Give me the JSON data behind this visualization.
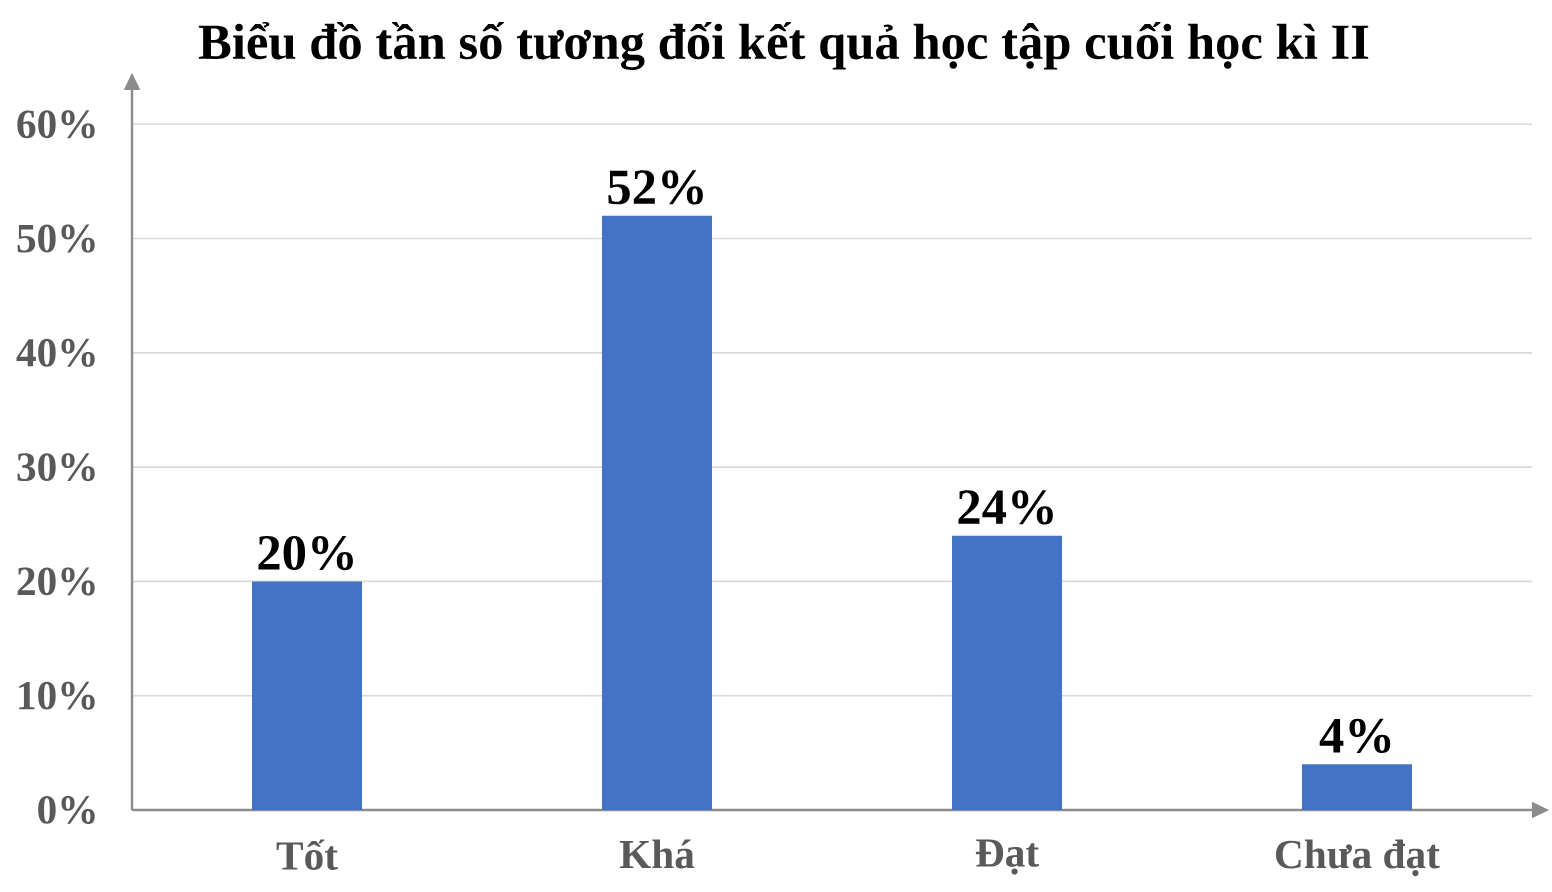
{
  "chart_data": {
    "type": "bar",
    "title": "Biểu đồ tần số tương đối kết quả học tập cuối học kì II",
    "categories": [
      "Tốt",
      "Khá",
      "Đạt",
      "Chưa đạt"
    ],
    "values": [
      20,
      52,
      24,
      4
    ],
    "value_labels": [
      "20%",
      "52%",
      "24%",
      "4%"
    ],
    "color": "#4472c4",
    "ylim": [
      0,
      63
    ],
    "yticks": [
      {
        "value": 0,
        "label": "0%"
      },
      {
        "value": 10,
        "label": "10%"
      },
      {
        "value": 20,
        "label": "20%"
      },
      {
        "value": 30,
        "label": "30%"
      },
      {
        "value": 40,
        "label": "40%"
      },
      {
        "value": 50,
        "label": "50%"
      },
      {
        "value": 60,
        "label": "60%"
      }
    ],
    "grid": "y"
  }
}
